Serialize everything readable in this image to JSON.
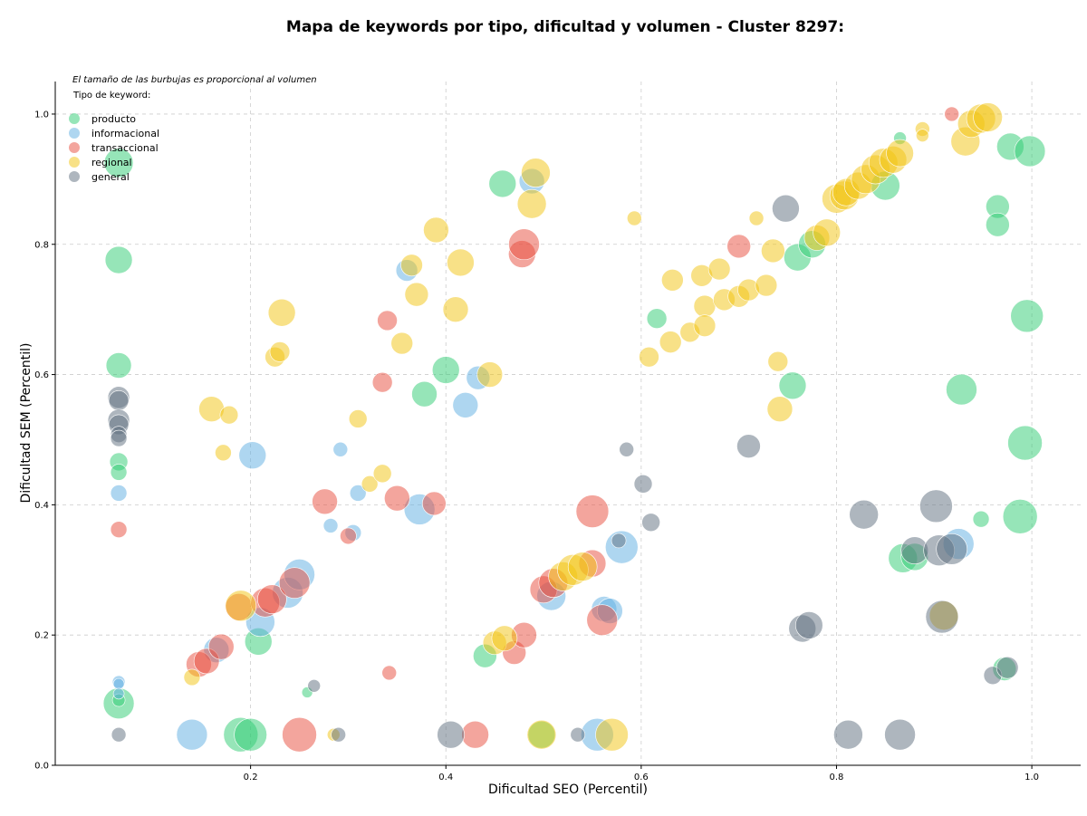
{
  "chart_data": {
    "type": "scatter",
    "title": "Mapa de keywords por tipo, dificultad y volumen - Cluster 8297:",
    "xlabel": "Dificultad SEO (Percentil)",
    "ylabel": "Dificultad SEM (Percentil)",
    "xlim": [
      0.0,
      1.05
    ],
    "ylim": [
      0.0,
      1.05
    ],
    "xticks": [
      "0.2",
      "0.4",
      "0.6",
      "0.8",
      "1.0"
    ],
    "yticks": [
      "0.0",
      "0.2",
      "0.4",
      "0.6",
      "0.8",
      "1.0"
    ],
    "grid": true,
    "size_note": "El tamaño de las burbujas es proporcional al volumen",
    "legend_title": "Tipo de keyword:",
    "legend_position": "top-left",
    "series": [
      {
        "name": "producto",
        "color": "#2ecc71",
        "points": [
          [
            0.065,
            0.925,
            16
          ],
          [
            0.065,
            0.776,
            15
          ],
          [
            0.065,
            0.614,
            14
          ],
          [
            0.065,
            0.466,
            10
          ],
          [
            0.065,
            0.45,
            9
          ],
          [
            0.065,
            0.095,
            17
          ],
          [
            0.065,
            0.1,
            7
          ],
          [
            0.208,
            0.19,
            15
          ],
          [
            0.19,
            0.047,
            19
          ],
          [
            0.2,
            0.047,
            18
          ],
          [
            0.258,
            0.112,
            6
          ],
          [
            0.378,
            0.57,
            14
          ],
          [
            0.4,
            0.607,
            15
          ],
          [
            0.44,
            0.168,
            13
          ],
          [
            0.458,
            0.893,
            15
          ],
          [
            0.498,
            0.047,
            15
          ],
          [
            0.616,
            0.686,
            11
          ],
          [
            0.76,
            0.78,
            15
          ],
          [
            0.775,
            0.8,
            15
          ],
          [
            0.755,
            0.583,
            15
          ],
          [
            0.85,
            0.89,
            16
          ],
          [
            0.865,
            0.963,
            7
          ],
          [
            0.868,
            0.318,
            16
          ],
          [
            0.88,
            0.32,
            15
          ],
          [
            0.928,
            0.577,
            17
          ],
          [
            0.948,
            0.378,
            9
          ],
          [
            0.965,
            0.858,
            13
          ],
          [
            0.965,
            0.83,
            13
          ],
          [
            0.978,
            0.95,
            15
          ],
          [
            0.998,
            0.943,
            17
          ],
          [
            0.995,
            0.69,
            18
          ],
          [
            0.993,
            0.495,
            19
          ],
          [
            0.988,
            0.382,
            19
          ],
          [
            0.972,
            0.148,
            13
          ]
        ]
      },
      {
        "name": "informacional",
        "color": "#5dade2",
        "points": [
          [
            0.065,
            0.128,
            7
          ],
          [
            0.065,
            0.125,
            6
          ],
          [
            0.065,
            0.11,
            6
          ],
          [
            0.065,
            0.418,
            9
          ],
          [
            0.14,
            0.047,
            17
          ],
          [
            0.165,
            0.177,
            14
          ],
          [
            0.202,
            0.476,
            15
          ],
          [
            0.21,
            0.22,
            16
          ],
          [
            0.238,
            0.265,
            17
          ],
          [
            0.25,
            0.293,
            17
          ],
          [
            0.282,
            0.368,
            8
          ],
          [
            0.292,
            0.485,
            8
          ],
          [
            0.305,
            0.357,
            9
          ],
          [
            0.31,
            0.418,
            9
          ],
          [
            0.36,
            0.76,
            12
          ],
          [
            0.373,
            0.393,
            17
          ],
          [
            0.42,
            0.553,
            14
          ],
          [
            0.433,
            0.595,
            13
          ],
          [
            0.488,
            0.897,
            14
          ],
          [
            0.508,
            0.26,
            16
          ],
          [
            0.555,
            0.047,
            18
          ],
          [
            0.562,
            0.24,
            14
          ],
          [
            0.568,
            0.237,
            14
          ],
          [
            0.58,
            0.335,
            18
          ],
          [
            0.925,
            0.34,
            17
          ]
        ]
      },
      {
        "name": "transaccional",
        "color": "#e74c3c",
        "points": [
          [
            0.065,
            0.362,
            9
          ],
          [
            0.147,
            0.155,
            14
          ],
          [
            0.155,
            0.16,
            14
          ],
          [
            0.17,
            0.182,
            14
          ],
          [
            0.188,
            0.243,
            15
          ],
          [
            0.215,
            0.25,
            16
          ],
          [
            0.222,
            0.255,
            16
          ],
          [
            0.245,
            0.28,
            17
          ],
          [
            0.25,
            0.047,
            19
          ],
          [
            0.276,
            0.405,
            14
          ],
          [
            0.3,
            0.352,
            9
          ],
          [
            0.34,
            0.683,
            11
          ],
          [
            0.335,
            0.588,
            11
          ],
          [
            0.342,
            0.142,
            8
          ],
          [
            0.35,
            0.41,
            14
          ],
          [
            0.388,
            0.402,
            13
          ],
          [
            0.43,
            0.047,
            15
          ],
          [
            0.47,
            0.173,
            13
          ],
          [
            0.48,
            0.2,
            14
          ],
          [
            0.478,
            0.785,
            15
          ],
          [
            0.48,
            0.8,
            17
          ],
          [
            0.5,
            0.27,
            15
          ],
          [
            0.51,
            0.28,
            16
          ],
          [
            0.55,
            0.39,
            18
          ],
          [
            0.55,
            0.31,
            15
          ],
          [
            0.56,
            0.223,
            17
          ],
          [
            0.7,
            0.797,
            13
          ],
          [
            0.918,
            1.0,
            8
          ]
        ]
      },
      {
        "name": "regional",
        "color": "#f1c40f",
        "points": [
          [
            0.14,
            0.135,
            9
          ],
          [
            0.16,
            0.547,
            14
          ],
          [
            0.172,
            0.48,
            9
          ],
          [
            0.178,
            0.538,
            10
          ],
          [
            0.19,
            0.245,
            17
          ],
          [
            0.225,
            0.627,
            11
          ],
          [
            0.23,
            0.635,
            11
          ],
          [
            0.232,
            0.695,
            15
          ],
          [
            0.285,
            0.047,
            7
          ],
          [
            0.31,
            0.532,
            10
          ],
          [
            0.322,
            0.432,
            9
          ],
          [
            0.335,
            0.448,
            10
          ],
          [
            0.355,
            0.648,
            12
          ],
          [
            0.365,
            0.768,
            12
          ],
          [
            0.37,
            0.723,
            13
          ],
          [
            0.39,
            0.822,
            14
          ],
          [
            0.41,
            0.7,
            14
          ],
          [
            0.415,
            0.772,
            15
          ],
          [
            0.445,
            0.6,
            14
          ],
          [
            0.45,
            0.188,
            13
          ],
          [
            0.46,
            0.195,
            14
          ],
          [
            0.488,
            0.862,
            16
          ],
          [
            0.492,
            0.91,
            16
          ],
          [
            0.498,
            0.047,
            16
          ],
          [
            0.52,
            0.29,
            16
          ],
          [
            0.53,
            0.3,
            17
          ],
          [
            0.54,
            0.305,
            16
          ],
          [
            0.57,
            0.047,
            18
          ],
          [
            0.593,
            0.84,
            8
          ],
          [
            0.608,
            0.627,
            11
          ],
          [
            0.63,
            0.65,
            12
          ],
          [
            0.632,
            0.745,
            12
          ],
          [
            0.65,
            0.665,
            11
          ],
          [
            0.662,
            0.752,
            12
          ],
          [
            0.665,
            0.705,
            12
          ],
          [
            0.665,
            0.675,
            12
          ],
          [
            0.68,
            0.762,
            12
          ],
          [
            0.685,
            0.715,
            12
          ],
          [
            0.7,
            0.72,
            12
          ],
          [
            0.71,
            0.73,
            12
          ],
          [
            0.718,
            0.84,
            8
          ],
          [
            0.728,
            0.737,
            12
          ],
          [
            0.735,
            0.79,
            13
          ],
          [
            0.74,
            0.62,
            11
          ],
          [
            0.742,
            0.547,
            14
          ],
          [
            0.78,
            0.81,
            14
          ],
          [
            0.79,
            0.818,
            15
          ],
          [
            0.8,
            0.87,
            16
          ],
          [
            0.808,
            0.875,
            16
          ],
          [
            0.81,
            0.88,
            15
          ],
          [
            0.822,
            0.89,
            15
          ],
          [
            0.83,
            0.9,
            16
          ],
          [
            0.84,
            0.915,
            16
          ],
          [
            0.848,
            0.925,
            16
          ],
          [
            0.858,
            0.93,
            15
          ],
          [
            0.865,
            0.94,
            15
          ],
          [
            0.888,
            0.977,
            8
          ],
          [
            0.888,
            0.967,
            7
          ],
          [
            0.91,
            0.23,
            16
          ],
          [
            0.932,
            0.958,
            16
          ],
          [
            0.938,
            0.985,
            15
          ],
          [
            0.948,
            0.993,
            16
          ],
          [
            0.955,
            0.995,
            16
          ]
        ]
      },
      {
        "name": "general",
        "color": "#5d6d7e",
        "points": [
          [
            0.065,
            0.565,
            12
          ],
          [
            0.065,
            0.56,
            11
          ],
          [
            0.065,
            0.53,
            12
          ],
          [
            0.065,
            0.523,
            11
          ],
          [
            0.065,
            0.508,
            9
          ],
          [
            0.065,
            0.502,
            9
          ],
          [
            0.065,
            0.047,
            8
          ],
          [
            0.265,
            0.122,
            7
          ],
          [
            0.29,
            0.047,
            8
          ],
          [
            0.405,
            0.047,
            15
          ],
          [
            0.535,
            0.047,
            8
          ],
          [
            0.577,
            0.345,
            8
          ],
          [
            0.585,
            0.485,
            8
          ],
          [
            0.602,
            0.432,
            10
          ],
          [
            0.61,
            0.373,
            10
          ],
          [
            0.71,
            0.49,
            13
          ],
          [
            0.748,
            0.855,
            15
          ],
          [
            0.765,
            0.21,
            15
          ],
          [
            0.772,
            0.215,
            15
          ],
          [
            0.812,
            0.047,
            16
          ],
          [
            0.828,
            0.385,
            16
          ],
          [
            0.865,
            0.047,
            17
          ],
          [
            0.88,
            0.33,
            15
          ],
          [
            0.902,
            0.398,
            18
          ],
          [
            0.905,
            0.33,
            17
          ],
          [
            0.908,
            0.228,
            18
          ],
          [
            0.918,
            0.332,
            17
          ],
          [
            0.96,
            0.138,
            10
          ],
          [
            0.975,
            0.15,
            12
          ]
        ]
      }
    ]
  }
}
